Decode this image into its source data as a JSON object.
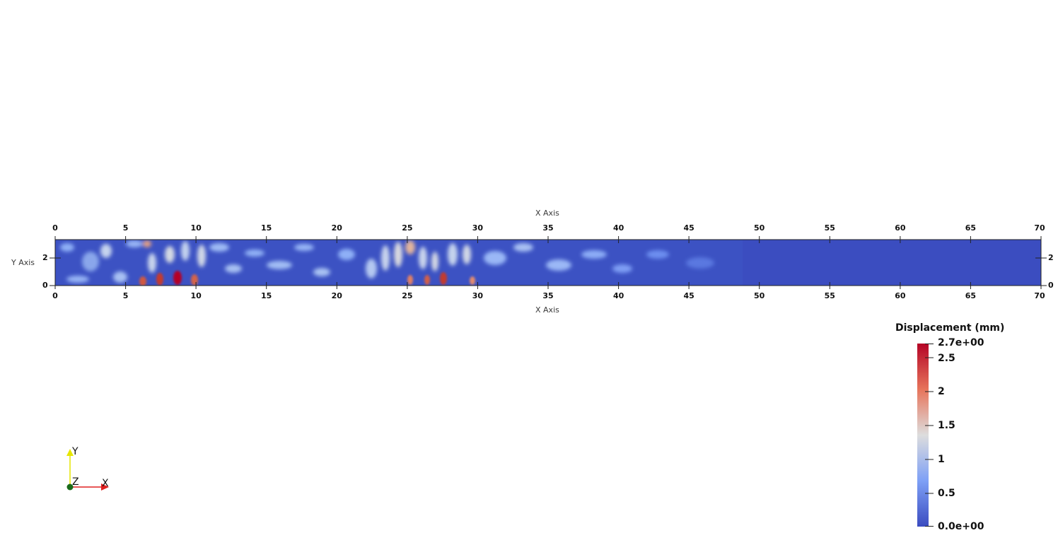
{
  "viewport": {
    "top_axis_title": "X Axis",
    "bottom_axis_title": "X Axis",
    "left_axis_title": "Y Axis",
    "x_ticks": [
      "0",
      "5",
      "10",
      "15",
      "20",
      "25",
      "30",
      "35",
      "40",
      "45",
      "50",
      "55",
      "60",
      "65",
      "70"
    ],
    "y_ticks_left": [
      "0",
      "2"
    ],
    "y_ticks_right": [
      "0",
      "2"
    ],
    "x_range": [
      0,
      70
    ],
    "y_range": [
      0,
      3.2
    ]
  },
  "colorbar": {
    "title": "Displacement (mm)",
    "range": [
      0,
      2.7
    ],
    "labels": [
      "2.7e+00",
      "2.5",
      "2",
      "1.5",
      "1",
      "0.5",
      "0.0e+00"
    ],
    "colors": [
      "#b40426",
      "#e7745b",
      "#dddddd",
      "#7ea0f6",
      "#3b4cc0"
    ]
  },
  "orientation": {
    "x_label": "X",
    "y_label": "Y",
    "z_label": "Z",
    "x_color": "#e02020",
    "y_color": "#e6e600",
    "z_color": "#1a6b1a"
  }
}
